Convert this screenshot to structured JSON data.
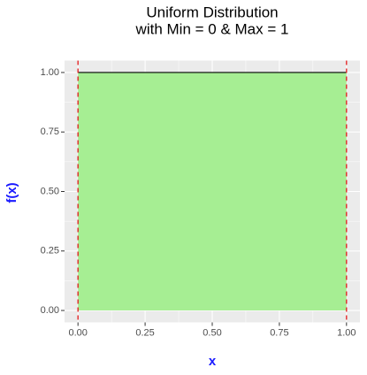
{
  "chart_data": {
    "type": "area",
    "title": [
      "Uniform Distribution",
      "with Min = 0 & Max = 1"
    ],
    "x_label": "x",
    "y_label": "f(x)",
    "x": [
      0,
      1
    ],
    "values": [
      1,
      1
    ],
    "fill_color": "#a6ee93",
    "line_color": "#000000",
    "vlines": [
      0,
      1
    ],
    "vline_color": "#e31a1c",
    "xlim": [
      -0.05,
      1.05
    ],
    "ylim": [
      -0.05,
      1.05
    ],
    "xticks": [
      {
        "value": 0,
        "label": "0.00"
      },
      {
        "value": 0.25,
        "label": "0.25"
      },
      {
        "value": 0.5,
        "label": "0.50"
      },
      {
        "value": 0.75,
        "label": "0.75"
      },
      {
        "value": 1,
        "label": "1.00"
      }
    ],
    "yticks": [
      {
        "value": 0,
        "label": "0.00"
      },
      {
        "value": 0.25,
        "label": "0.25"
      },
      {
        "value": 0.5,
        "label": "0.50"
      },
      {
        "value": 0.75,
        "label": "0.75"
      },
      {
        "value": 1,
        "label": "1.00"
      }
    ],
    "grid": true
  }
}
